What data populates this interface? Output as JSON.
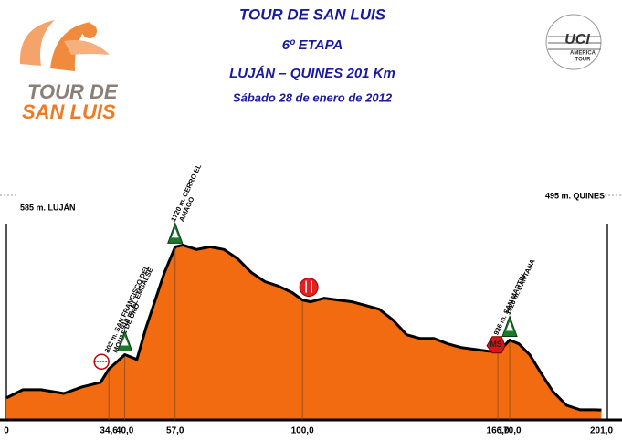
{
  "header": {
    "title": "TOUR DE SAN LUIS",
    "stage": "6º ETAPA",
    "route": "LUJÁN – QUINES 201 Km",
    "date": "Sábado 28 de enero de 2012"
  },
  "logo": {
    "line1": "TOUR DE",
    "line2": "SAN LUIS"
  },
  "uci_logo": {
    "mark": "UCI",
    "line1": "AMERICA",
    "line2": "TOUR"
  },
  "chart_data": {
    "type": "area",
    "start_label": "585 m. LUJÁN",
    "end_label": "495 m. QUINES",
    "series": [
      {
        "color": "#f26b10",
        "line_color": "#000000",
        "x": [
          0,
          5.6,
          11.7,
          19.4,
          25.6,
          31.8,
          34.6,
          40,
          44.1,
          47.2,
          50.3,
          53.4,
          57,
          59.6,
          64.2,
          68.8,
          73.5,
          78.1,
          82.7,
          87.3,
          92,
          96.6,
          100,
          102.8,
          107.4,
          112,
          116.7,
          121.3,
          125.9,
          130.6,
          135.2,
          139.8,
          144.4,
          149.1,
          153.7,
          158.3,
          163,
          166,
          168.2,
          170,
          173.1,
          176.8,
          180.6,
          184.6,
          189.2,
          193.8,
          198.5,
          201
        ],
        "values": [
          585,
          647,
          647,
          619,
          668,
          702,
          802,
          910,
          874,
          1115,
          1321,
          1528,
          1720,
          1734,
          1700,
          1720,
          1700,
          1631,
          1528,
          1459,
          1424,
          1376,
          1321,
          1307,
          1335,
          1321,
          1307,
          1280,
          1252,
          1170,
          1060,
          1032,
          1032,
          991,
          963,
          950,
          936,
          936,
          977,
          1020,
          991,
          908,
          771,
          633,
          530,
          496,
          496,
          495
        ]
      }
    ],
    "xlim": [
      0,
      203
    ],
    "ylim": [
      420,
      2100
    ],
    "xticks": [
      0,
      {
        "value": 34.6,
        "label": "34,6"
      },
      {
        "value": 40,
        "label": "40,0"
      },
      {
        "value": 57,
        "label": "57,0"
      },
      {
        "value": 100,
        "label": "100,0"
      },
      {
        "value": 166,
        "label": "166,0"
      },
      {
        "value": 170,
        "label": "170,0"
      },
      {
        "value": 201,
        "label": "201,0"
      }
    ],
    "annotations": [
      {
        "x": 34.6,
        "icon": "sprint",
        "lines": [
          "802 m. SAN FRANCISCO DEL",
          "MONTE DE ORO"
        ]
      },
      {
        "x": 40,
        "icon": "mountain",
        "lines": [
          "910 m. EL EMBALSE"
        ]
      },
      {
        "x": 57,
        "icon": "mountain",
        "lines": [
          "1720 m. CERRO EL",
          "AMAGO"
        ]
      },
      {
        "x": 100,
        "icon": "feed"
      },
      {
        "x": 166,
        "icon": "meta-volante",
        "mark": "MS",
        "lines": [
          "936 m. SAN MARTIN"
        ]
      },
      {
        "x": 170,
        "icon": "mountain",
        "lines": [
          "1020 m. CANTANA"
        ]
      }
    ]
  }
}
